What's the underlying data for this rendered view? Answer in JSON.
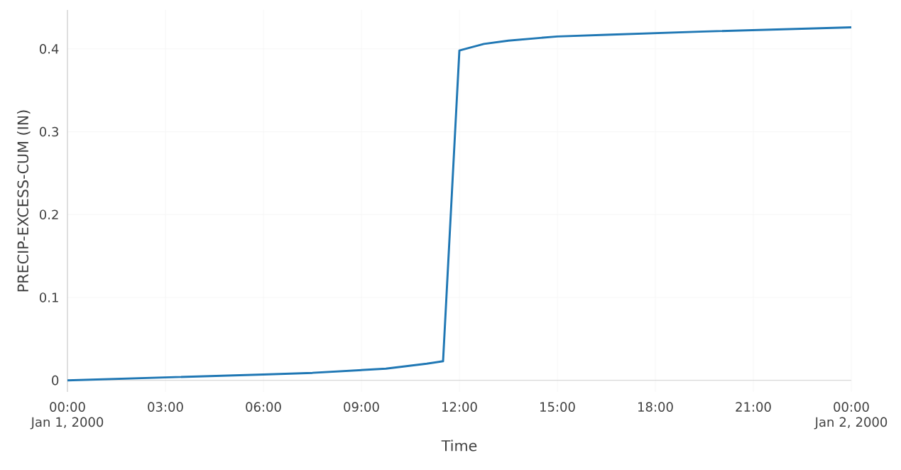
{
  "chart_data": {
    "type": "line",
    "xlabel": "Time",
    "ylabel": "PRECIP-EXCESS-CUM (IN)",
    "x": [
      "2000-01-01T00:00",
      "2000-01-01T06:00",
      "2000-01-01T07:30",
      "2000-01-01T09:45",
      "2000-01-01T11:00",
      "2000-01-01T11:30",
      "2000-01-01T12:00",
      "2000-01-01T12:45",
      "2000-01-01T13:30",
      "2000-01-01T15:00",
      "2000-01-01T16:30",
      "2000-01-01T19:30",
      "2000-01-02T00:00"
    ],
    "series": [
      {
        "color": "#1f77b4",
        "values": [
          0,
          0.007,
          0.009,
          0.014,
          0.02,
          0.023,
          0.398,
          0.406,
          0.41,
          0.415,
          0.417,
          0.421,
          0.426
        ]
      }
    ],
    "xlim": [
      "2000-01-01T00:00",
      "2000-01-02T00:00"
    ],
    "xticks": [
      {
        "value": "2000-01-01T00:00",
        "label": "00:00 Jan 1, 2000"
      },
      {
        "value": "2000-01-01T03:00",
        "label": "03:00"
      },
      {
        "value": "2000-01-01T06:00",
        "label": "06:00"
      },
      {
        "value": "2000-01-01T09:00",
        "label": "09:00"
      },
      {
        "value": "2000-01-01T12:00",
        "label": "12:00"
      },
      {
        "value": "2000-01-01T15:00",
        "label": "15:00"
      },
      {
        "value": "2000-01-01T18:00",
        "label": "18:00"
      },
      {
        "value": "2000-01-01T21:00",
        "label": "21:00"
      },
      {
        "value": "2000-01-02T00:00",
        "label": "00:00 Jan 2, 2000"
      }
    ],
    "ylim": [
      -0.014,
      0.447
    ],
    "yticks": [
      0,
      0.1,
      0.2,
      0.3,
      0.4
    ],
    "grid": true,
    "marker": "none",
    "line_style": "solid"
  }
}
